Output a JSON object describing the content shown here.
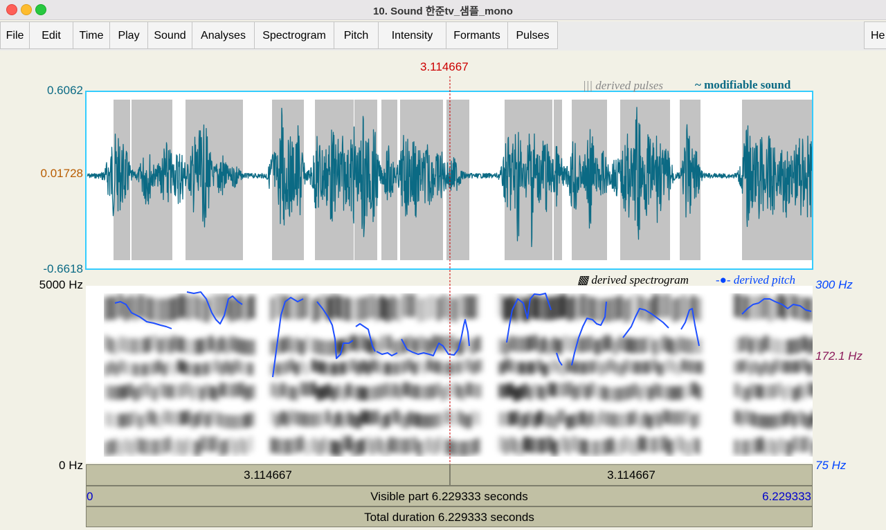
{
  "window": {
    "title": "10. Sound 한준tv_샘플_mono"
  },
  "menu": [
    "File",
    "Edit",
    "Time",
    "Play",
    "Sound",
    "Analyses",
    "Spectrogram",
    "Pitch",
    "Intensity",
    "Formants",
    "Pulses"
  ],
  "help_label": "He",
  "cursor": {
    "time_label": "3.114667"
  },
  "waveform": {
    "ymax": "0.6062",
    "ymid": "0.01728",
    "ymin": "-0.6618"
  },
  "legend": {
    "pulses_glyph": "|||",
    "pulses": "derived pulses",
    "sound_glyph": "~",
    "sound": "modifiable sound",
    "spectro_glyph": "▩",
    "spectrogram": "derived spectrogram",
    "pitch_glyph": "-●-",
    "pitch": "derived pitch"
  },
  "spectrogram": {
    "freq_max": "5000 Hz",
    "freq_min": "0 Hz"
  },
  "pitch_axis": {
    "max": "300 Hz",
    "mid": "172.1 Hz",
    "min": "75 Hz"
  },
  "timebar": {
    "left": "3.114667",
    "right": "3.114667"
  },
  "visible": {
    "start": "0",
    "label": "Visible part 6.229333 seconds",
    "end": "6.229333"
  },
  "total": {
    "label": "Total duration 6.229333 seconds"
  },
  "colors": {
    "waveform": "#0b6a84",
    "selection": "#33ccff",
    "cursor": "#cc0000",
    "pitch": "#0044ff",
    "mid_label": "#8b1a5a",
    "y_mid": "#b85c00"
  }
}
